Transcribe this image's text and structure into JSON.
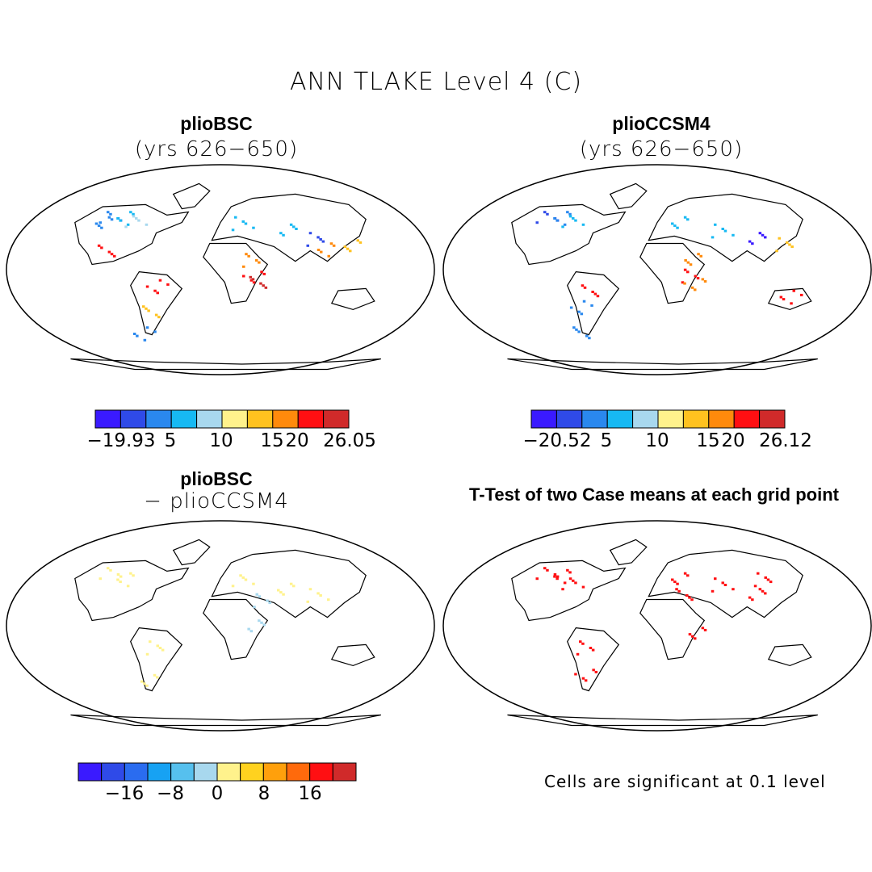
{
  "figure_title": "ANN TLAKE Level 4 (C)",
  "panels": [
    {
      "title": "plioBSC",
      "subtitle": "(yrs 626−650)"
    },
    {
      "title": "plioCCSM4",
      "subtitle": "(yrs 626−650)"
    },
    {
      "title": "plioBSC",
      "subtitle": "− plioCCSM4"
    },
    {
      "title": "T-Test of two Case means at each grid point",
      "subtitle": ""
    }
  ],
  "colorbars": [
    {
      "colors": [
        "#3a1aff",
        "#2f4ae8",
        "#2a88ee",
        "#17b9f3",
        "#a8d8ee",
        "#fff28c",
        "#ffc21f",
        "#ff8a0c",
        "#ff0f12",
        "#d02a2a"
      ],
      "labels": [
        "−19.93",
        "5",
        "10",
        "15",
        "20",
        "26.05"
      ]
    },
    {
      "colors": [
        "#3a1aff",
        "#2f4ae8",
        "#2a88ee",
        "#17b9f3",
        "#a8d8ee",
        "#fff28c",
        "#ffc21f",
        "#ff8a0c",
        "#ff0f12",
        "#d02a2a"
      ],
      "labels": [
        "−20.52",
        "5",
        "10",
        "15",
        "20",
        "26.12"
      ]
    },
    {
      "colors": [
        "#3a1aff",
        "#2f4ae8",
        "#2a6cf0",
        "#17a2f3",
        "#56c0ee",
        "#a8d8ee",
        "#fff28c",
        "#ffd21f",
        "#ffa00c",
        "#ff6a0c",
        "#ff0f12",
        "#d02a2a"
      ],
      "labels": [
        "−16",
        "−8",
        "0",
        "8",
        "16"
      ]
    }
  ],
  "significance_note": "Cells are significant at 0.1 level"
}
